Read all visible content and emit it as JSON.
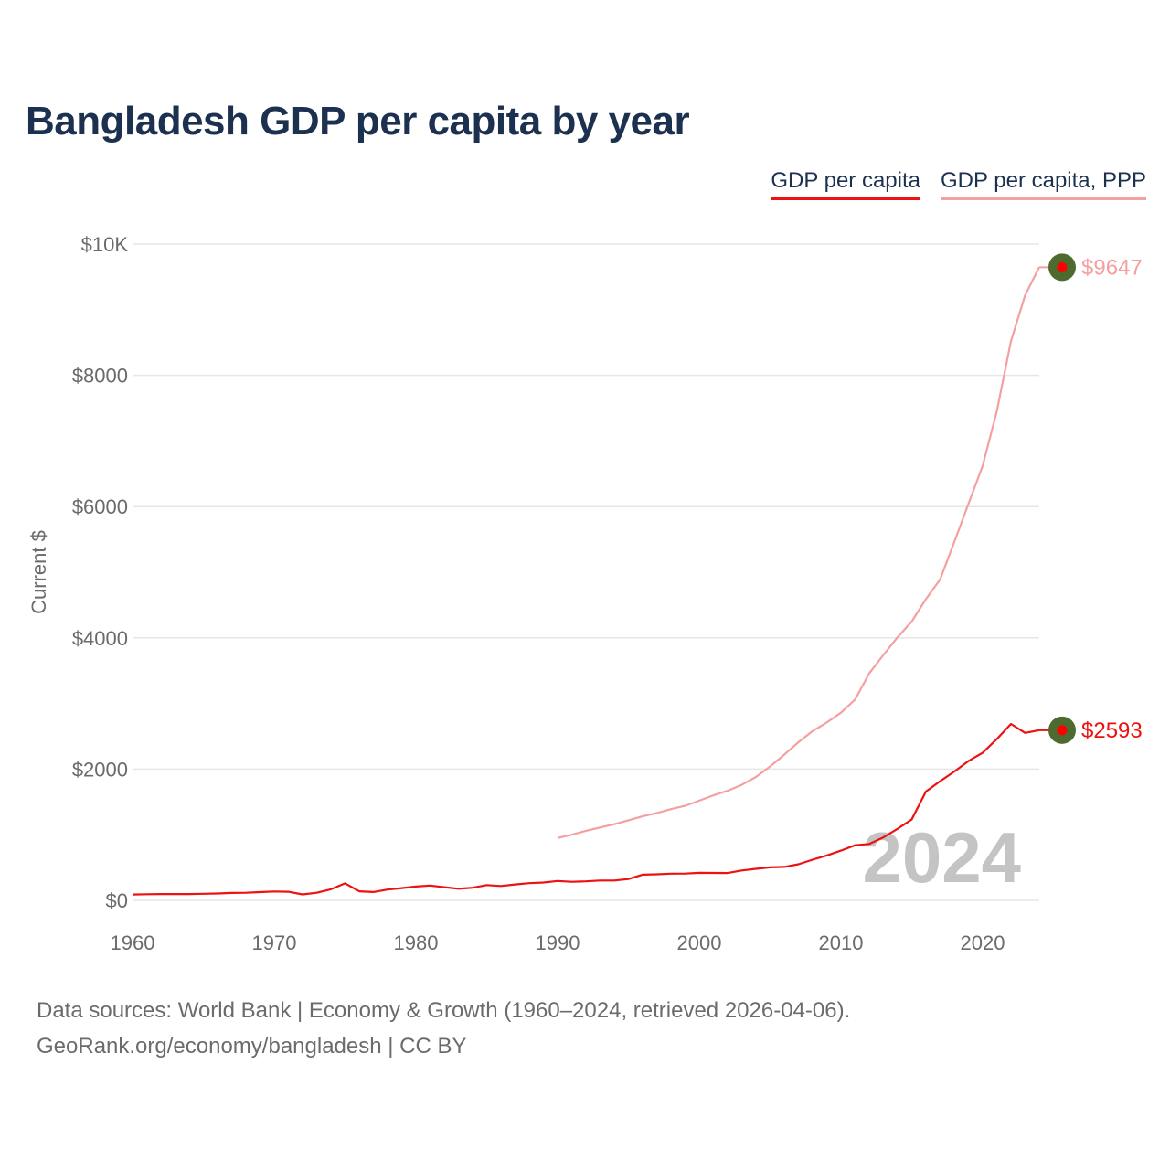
{
  "page": {
    "title": "Bangladesh GDP per capita by year",
    "source_line1": "Data sources: World Bank | Economy & Growth (1960–2024, retrieved 2026-04-06).",
    "source_line2": "GeoRank.org/economy/bangladesh | CC BY"
  },
  "chart_data": {
    "type": "line",
    "title": "Bangladesh GDP per capita by year",
    "ylabel": "Current $",
    "xlabel": "",
    "xlim": [
      1960,
      2024
    ],
    "ylim": [
      0,
      10000
    ],
    "x_ticks": [
      1960,
      1970,
      1980,
      1990,
      2000,
      2010,
      2020
    ],
    "y_ticks": [
      0,
      2000,
      4000,
      6000,
      8000,
      10000
    ],
    "y_tick_labels": [
      "$0",
      "$2000",
      "$4000",
      "$6000",
      "$8000",
      "$10K"
    ],
    "grid": true,
    "legend_position": "top-right",
    "year_watermark": "2024",
    "colors": {
      "gdp": "#ee1111",
      "ppp": "#f4a0a0",
      "marker_ring": "#4d6b2e",
      "marker_dot": "#ff0000"
    },
    "series": [
      {
        "name": "GDP per capita",
        "color": "#ee1111",
        "end_label": "$2593",
        "x": [
          1960,
          1961,
          1962,
          1963,
          1964,
          1965,
          1966,
          1967,
          1968,
          1969,
          1970,
          1971,
          1972,
          1973,
          1974,
          1975,
          1976,
          1977,
          1978,
          1979,
          1980,
          1981,
          1982,
          1983,
          1984,
          1985,
          1986,
          1987,
          1988,
          1989,
          1990,
          1991,
          1992,
          1993,
          1994,
          1995,
          1996,
          1997,
          1998,
          1999,
          2000,
          2001,
          2002,
          2003,
          2004,
          2005,
          2006,
          2007,
          2008,
          2009,
          2010,
          2011,
          2012,
          2013,
          2014,
          2015,
          2016,
          2017,
          2018,
          2019,
          2020,
          2021,
          2022,
          2023,
          2024
        ],
        "values": [
          89,
          93,
          96,
          96,
          96,
          100,
          105,
          113,
          116,
          125,
          135,
          131,
          90,
          115,
          168,
          259,
          138,
          127,
          165,
          187,
          211,
          226,
          200,
          177,
          192,
          232,
          219,
          243,
          262,
          272,
          295,
          283,
          290,
          302,
          302,
          325,
          392,
          397,
          406,
          408,
          419,
          418,
          417,
          455,
          480,
          503,
          510,
          550,
          620,
          684,
          758,
          840,
          860,
          960,
          1090,
          1234,
          1659,
          1816,
          1963,
          2122,
          2248,
          2457,
          2688,
          2551,
          2593
        ]
      },
      {
        "name": "GDP per capita, PPP",
        "color": "#f4a0a0",
        "end_label": "$9647",
        "x": [
          1990,
          1991,
          1992,
          1993,
          1994,
          1995,
          1996,
          1997,
          1998,
          1999,
          2000,
          2001,
          2002,
          2003,
          2004,
          2005,
          2006,
          2007,
          2008,
          2009,
          2010,
          2011,
          2012,
          2013,
          2014,
          2015,
          2016,
          2017,
          2018,
          2019,
          2020,
          2021,
          2022,
          2023,
          2024
        ],
        "values": [
          950,
          1000,
          1060,
          1110,
          1160,
          1220,
          1280,
          1330,
          1390,
          1440,
          1520,
          1600,
          1670,
          1760,
          1880,
          2040,
          2220,
          2410,
          2580,
          2710,
          2860,
          3060,
          3460,
          3740,
          4010,
          4250,
          4590,
          4890,
          5460,
          6040,
          6620,
          7450,
          8520,
          9220,
          9647
        ]
      }
    ]
  }
}
